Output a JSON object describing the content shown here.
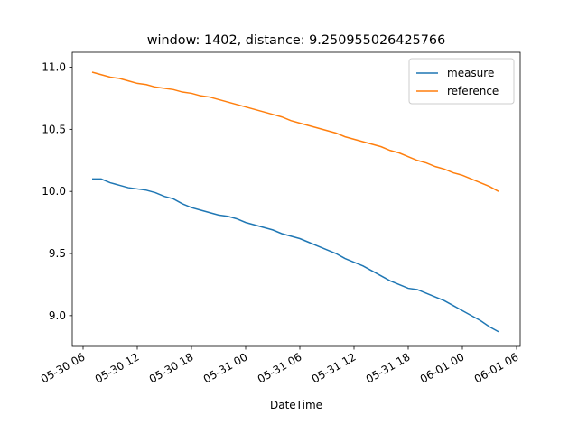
{
  "chart_data": {
    "type": "line",
    "title": "window: 1402, distance: 9.250955026425766",
    "x_label": "DateTime",
    "x": [
      "05-30 07",
      "05-30 08",
      "05-30 09",
      "05-30 10",
      "05-30 11",
      "05-30 12",
      "05-30 13",
      "05-30 14",
      "05-30 15",
      "05-30 16",
      "05-30 17",
      "05-30 18",
      "05-30 19",
      "05-30 20",
      "05-30 21",
      "05-30 22",
      "05-30 23",
      "05-31 00",
      "05-31 01",
      "05-31 02",
      "05-31 03",
      "05-31 04",
      "05-31 05",
      "05-31 06",
      "05-31 07",
      "05-31 08",
      "05-31 09",
      "05-31 10",
      "05-31 11",
      "05-31 12",
      "05-31 13",
      "05-31 14",
      "05-31 15",
      "05-31 16",
      "05-31 17",
      "05-31 18",
      "05-31 19",
      "05-31 20",
      "05-31 21",
      "05-31 22",
      "05-31 23",
      "06-01 00",
      "06-01 01",
      "06-01 02",
      "06-01 03",
      "06-01 04"
    ],
    "series": [
      {
        "name": "measure",
        "color": "#1f77b4",
        "values": [
          10.1,
          10.1,
          10.07,
          10.05,
          10.03,
          10.02,
          10.01,
          9.99,
          9.96,
          9.94,
          9.9,
          9.87,
          9.85,
          9.83,
          9.81,
          9.8,
          9.78,
          9.75,
          9.73,
          9.71,
          9.69,
          9.66,
          9.64,
          9.62,
          9.59,
          9.56,
          9.53,
          9.5,
          9.46,
          9.43,
          9.4,
          9.36,
          9.32,
          9.28,
          9.25,
          9.22,
          9.21,
          9.18,
          9.15,
          9.12,
          9.08,
          9.04,
          9.0,
          8.96,
          8.91,
          8.87
        ]
      },
      {
        "name": "reference",
        "color": "#ff7f0e",
        "values": [
          10.96,
          10.94,
          10.92,
          10.91,
          10.89,
          10.87,
          10.86,
          10.84,
          10.83,
          10.82,
          10.8,
          10.79,
          10.77,
          10.76,
          10.74,
          10.72,
          10.7,
          10.68,
          10.66,
          10.64,
          10.62,
          10.6,
          10.57,
          10.55,
          10.53,
          10.51,
          10.49,
          10.47,
          10.44,
          10.42,
          10.4,
          10.38,
          10.36,
          10.33,
          10.31,
          10.28,
          10.25,
          10.23,
          10.2,
          10.18,
          10.15,
          10.13,
          10.1,
          10.07,
          10.04,
          10.0
        ]
      }
    ],
    "xlim": [
      "05-30 04:48",
      "06-01 06:24"
    ],
    "xticks": [
      "05-30 06",
      "05-30 12",
      "05-30 18",
      "05-31 00",
      "05-31 06",
      "05-31 12",
      "05-31 18",
      "06-01 00",
      "06-01 06"
    ],
    "ylim": [
      8.752,
      11.12
    ],
    "yticks": [
      {
        "value": 9,
        "label": "9.0"
      },
      {
        "value": 9.5,
        "label": "9.5"
      },
      {
        "value": 10,
        "label": "10.0"
      },
      {
        "value": 10.5,
        "label": "10.5"
      },
      {
        "value": 11,
        "label": "11.0"
      }
    ],
    "legend": "upper right"
  }
}
